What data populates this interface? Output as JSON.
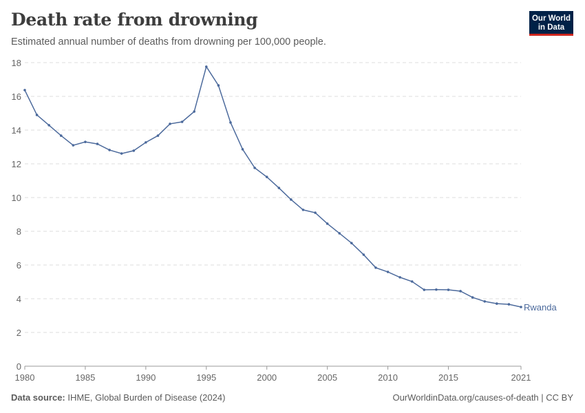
{
  "header": {
    "title": "Death rate from drowning",
    "subtitle": "Estimated annual number of deaths from drowning per 100,000 people.",
    "logo": "Our World in Data"
  },
  "footer": {
    "source_label": "Data source:",
    "source": "IHME, Global Burden of Disease (2024)",
    "link": "OurWorldinData.org/causes-of-death | CC BY"
  },
  "chart_data": {
    "type": "line",
    "title": "Death rate from drowning",
    "xlim": [
      1980,
      2021
    ],
    "ylim": [
      0,
      18
    ],
    "x_ticks": [
      1980,
      1985,
      1990,
      1995,
      2000,
      2005,
      2010,
      2015,
      2021
    ],
    "y_ticks": [
      0,
      2,
      4,
      6,
      8,
      10,
      12,
      14,
      16,
      18
    ],
    "grid": "horizontal dashed",
    "color": "#4c6a9c",
    "series": [
      {
        "name": "Rwanda",
        "x": [
          1980,
          1981,
          1982,
          1983,
          1984,
          1985,
          1986,
          1987,
          1988,
          1989,
          1990,
          1991,
          1992,
          1993,
          1994,
          1995,
          1996,
          1997,
          1998,
          1999,
          2000,
          2001,
          2002,
          2003,
          2004,
          2005,
          2006,
          2007,
          2008,
          2009,
          2010,
          2011,
          2012,
          2013,
          2014,
          2015,
          2016,
          2017,
          2018,
          2019,
          2020,
          2021
        ],
        "values": [
          16.37,
          14.9,
          14.29,
          13.67,
          13.1,
          13.3,
          13.18,
          12.82,
          12.61,
          12.78,
          13.27,
          13.67,
          14.37,
          14.49,
          15.1,
          17.76,
          16.65,
          14.45,
          12.86,
          11.76,
          11.22,
          10.57,
          9.88,
          9.27,
          9.1,
          8.45,
          7.88,
          7.3,
          6.61,
          5.84,
          5.59,
          5.27,
          5.02,
          4.53,
          4.54,
          4.53,
          4.45,
          4.08,
          3.84,
          3.71,
          3.67,
          3.51
        ]
      }
    ]
  }
}
